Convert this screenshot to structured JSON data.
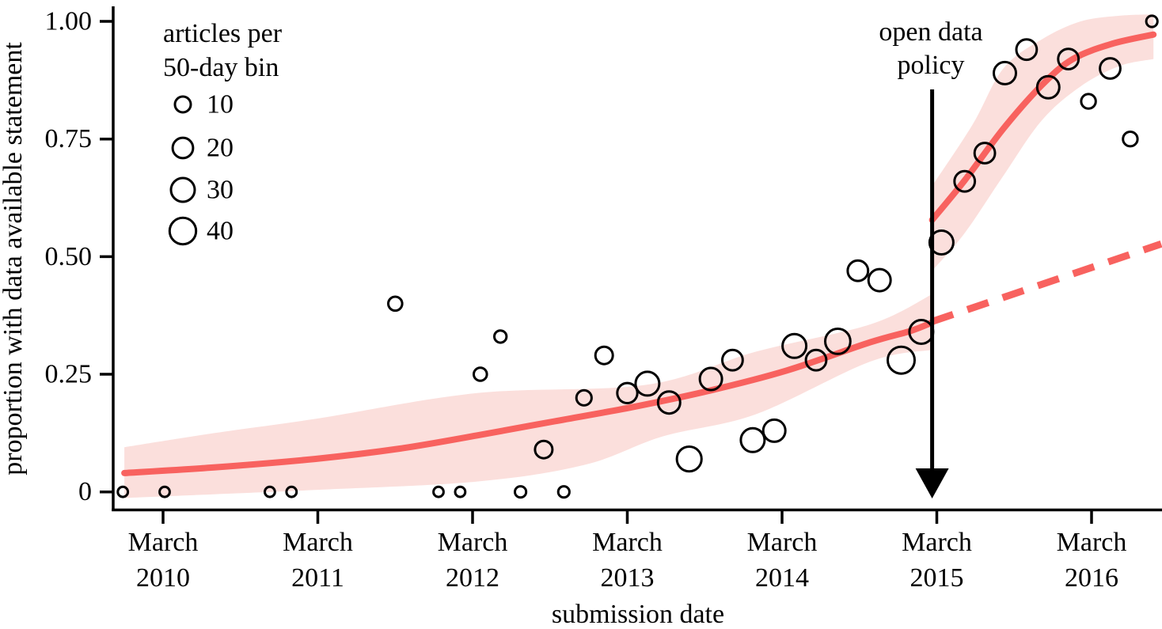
{
  "chart_data": {
    "type": "scatter",
    "title": "",
    "xlabel": "submission date",
    "ylabel": "proportion with data available statement",
    "x_axis": {
      "tick_month": "March",
      "tick_years": [
        "2010",
        "2011",
        "2012",
        "2013",
        "2014",
        "2015",
        "2016"
      ],
      "tick_t": [
        2010.17,
        2011.17,
        2012.17,
        2013.17,
        2014.17,
        2015.17,
        2016.17
      ],
      "range_t": [
        2009.85,
        2016.63
      ]
    },
    "y_axis": {
      "tick_labels": [
        "0",
        "0.25",
        "0.50",
        "0.75",
        "1.00"
      ],
      "tick_values": [
        0,
        0.25,
        0.5,
        0.75,
        1.0
      ],
      "range": [
        0,
        1.0
      ]
    },
    "legend": {
      "title_line1": "articles per",
      "title_line2": "50-day bin",
      "sizes": [
        10,
        20,
        30,
        40
      ],
      "position": "top-left"
    },
    "annotation": {
      "line1": "open data",
      "line2": "policy",
      "t": 2015.14
    },
    "points": [
      {
        "t": 2009.91,
        "p": 0.0,
        "n": 3
      },
      {
        "t": 2010.18,
        "p": 0.0,
        "n": 3
      },
      {
        "t": 2010.86,
        "p": 0.0,
        "n": 3
      },
      {
        "t": 2011.0,
        "p": 0.0,
        "n": 3
      },
      {
        "t": 2011.67,
        "p": 0.4,
        "n": 7
      },
      {
        "t": 2011.95,
        "p": 0.0,
        "n": 3
      },
      {
        "t": 2012.09,
        "p": 0.0,
        "n": 3
      },
      {
        "t": 2012.22,
        "p": 0.25,
        "n": 6
      },
      {
        "t": 2012.35,
        "p": 0.33,
        "n": 5
      },
      {
        "t": 2012.48,
        "p": 0.0,
        "n": 4
      },
      {
        "t": 2012.63,
        "p": 0.09,
        "n": 13
      },
      {
        "t": 2012.76,
        "p": 0.0,
        "n": 4
      },
      {
        "t": 2012.89,
        "p": 0.2,
        "n": 9
      },
      {
        "t": 2013.02,
        "p": 0.29,
        "n": 13
      },
      {
        "t": 2013.17,
        "p": 0.21,
        "n": 19
      },
      {
        "t": 2013.3,
        "p": 0.23,
        "n": 30
      },
      {
        "t": 2013.44,
        "p": 0.19,
        "n": 25
      },
      {
        "t": 2013.57,
        "p": 0.07,
        "n": 33
      },
      {
        "t": 2013.71,
        "p": 0.24,
        "n": 25
      },
      {
        "t": 2013.85,
        "p": 0.28,
        "n": 20
      },
      {
        "t": 2013.98,
        "p": 0.11,
        "n": 30
      },
      {
        "t": 2014.12,
        "p": 0.13,
        "n": 25
      },
      {
        "t": 2014.25,
        "p": 0.31,
        "n": 30
      },
      {
        "t": 2014.39,
        "p": 0.28,
        "n": 20
      },
      {
        "t": 2014.53,
        "p": 0.32,
        "n": 35
      },
      {
        "t": 2014.66,
        "p": 0.47,
        "n": 20
      },
      {
        "t": 2014.8,
        "p": 0.45,
        "n": 25
      },
      {
        "t": 2014.94,
        "p": 0.28,
        "n": 42
      },
      {
        "t": 2015.07,
        "p": 0.34,
        "n": 30
      },
      {
        "t": 2015.2,
        "p": 0.53,
        "n": 30
      },
      {
        "t": 2015.35,
        "p": 0.66,
        "n": 20
      },
      {
        "t": 2015.48,
        "p": 0.72,
        "n": 20
      },
      {
        "t": 2015.61,
        "p": 0.89,
        "n": 25
      },
      {
        "t": 2015.75,
        "p": 0.94,
        "n": 20
      },
      {
        "t": 2015.89,
        "p": 0.86,
        "n": 25
      },
      {
        "t": 2016.02,
        "p": 0.92,
        "n": 20
      },
      {
        "t": 2016.15,
        "p": 0.83,
        "n": 8
      },
      {
        "t": 2016.29,
        "p": 0.9,
        "n": 20
      },
      {
        "t": 2016.42,
        "p": 0.75,
        "n": 8
      },
      {
        "t": 2016.56,
        "p": 1.0,
        "n": 4
      }
    ],
    "smoothers": {
      "pre_line": [
        [
          2009.92,
          0.04
        ],
        [
          2010.5,
          0.052
        ],
        [
          2011.15,
          0.07
        ],
        [
          2011.7,
          0.092
        ],
        [
          2012.2,
          0.12
        ],
        [
          2012.7,
          0.15
        ],
        [
          2013.2,
          0.18
        ],
        [
          2013.7,
          0.215
        ],
        [
          2014.2,
          0.258
        ],
        [
          2014.74,
          0.318
        ],
        [
          2015.0,
          0.342
        ],
        [
          2015.14,
          0.36
        ]
      ],
      "pre_upper": [
        [
          2009.92,
          0.095
        ],
        [
          2010.5,
          0.125
        ],
        [
          2011.15,
          0.155
        ],
        [
          2012.2,
          0.21
        ],
        [
          2013.3,
          0.228
        ],
        [
          2014.0,
          0.298
        ],
        [
          2014.74,
          0.356
        ],
        [
          2015.14,
          0.42
        ]
      ],
      "pre_lower": [
        [
          2009.92,
          -0.013
        ],
        [
          2010.5,
          -0.005
        ],
        [
          2011.15,
          0.004
        ],
        [
          2012.2,
          0.022
        ],
        [
          2012.9,
          0.058
        ],
        [
          2013.4,
          0.118
        ],
        [
          2014.0,
          0.165
        ],
        [
          2014.74,
          0.277
        ],
        [
          2015.14,
          0.302
        ]
      ],
      "post_line": [
        [
          2015.14,
          0.578
        ],
        [
          2015.35,
          0.662
        ],
        [
          2015.6,
          0.772
        ],
        [
          2015.85,
          0.865
        ],
        [
          2016.05,
          0.92
        ],
        [
          2016.3,
          0.952
        ],
        [
          2016.57,
          0.972
        ]
      ],
      "post_upper": [
        [
          2015.14,
          0.65
        ],
        [
          2015.4,
          0.78
        ],
        [
          2015.6,
          0.9
        ],
        [
          2015.85,
          0.962
        ],
        [
          2016.1,
          1.0
        ],
        [
          2016.35,
          1.012
        ],
        [
          2016.57,
          1.015
        ]
      ],
      "post_lower": [
        [
          2015.14,
          0.47
        ],
        [
          2015.35,
          0.55
        ],
        [
          2015.6,
          0.672
        ],
        [
          2015.85,
          0.79
        ],
        [
          2016.1,
          0.862
        ],
        [
          2016.35,
          0.905
        ],
        [
          2016.57,
          0.92
        ]
      ],
      "counterfactual_dashed": [
        [
          2015.14,
          0.362
        ],
        [
          2016.62,
          0.527
        ]
      ]
    },
    "colors": {
      "trend": "#f8625f",
      "ribbon": "#fbdfdc",
      "points": "#000000",
      "annotation": "#000000"
    }
  }
}
